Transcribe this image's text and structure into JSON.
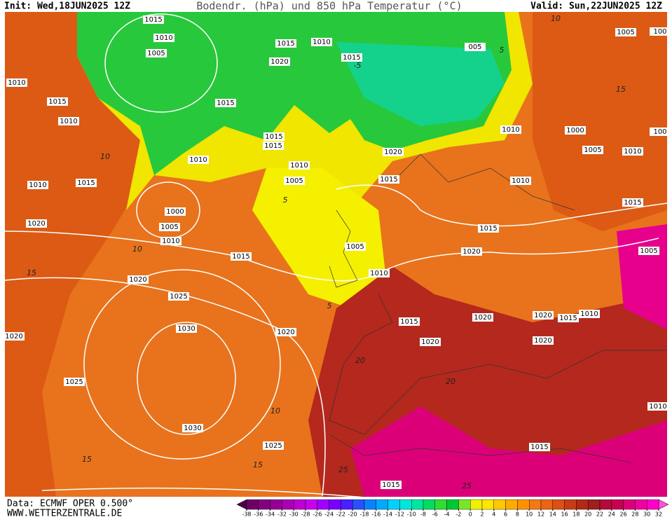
{
  "header": {
    "init": "Init: Wed,18JUN2025 12Z",
    "title": "Bodendr. (hPa) und 850 hPa Temperatur (°C)",
    "valid": "Valid: Sun,22JUN2025 12Z"
  },
  "footer": {
    "data": "Data: ECMWF OPER 0.500°",
    "site": "WWW.WETTERZENTRALE.DE"
  },
  "isobar_labels": [
    "1015",
    "1010",
    "1005",
    "1015",
    "1010",
    "1020",
    "1015",
    "005",
    "1005",
    "100",
    "1010",
    "1015",
    "1010",
    "1015",
    "1015",
    "1015",
    "1010",
    "1020",
    "1010",
    "1000",
    "1005",
    "1010",
    "100",
    "1010",
    "1005",
    "1015",
    "1010",
    "1010",
    "1015",
    "1000",
    "1005",
    "1010",
    "1015",
    "1020",
    "1015",
    "1005",
    "1015",
    "1020",
    "1005",
    "1010",
    "1020",
    "1025",
    "1015",
    "1020",
    "1020",
    "1015",
    "1010",
    "1030",
    "1020",
    "1020",
    "1020",
    "1020",
    "1025",
    "1030",
    "1025",
    "1010",
    "1015",
    "1015"
  ],
  "temperature_labels": [
    "10",
    "10",
    "15",
    "5",
    "10",
    "15",
    "15",
    "20",
    "20",
    "25",
    "25",
    "15",
    "10",
    "5",
    "5",
    "-5"
  ],
  "colorbar": {
    "ticks": [
      -38,
      -36,
      -34,
      -32,
      -30,
      -28,
      -26,
      -24,
      -22,
      -20,
      -18,
      -16,
      -14,
      -12,
      -10,
      -8,
      -6,
      -4,
      -2,
      0,
      2,
      4,
      6,
      8,
      10,
      12,
      14,
      16,
      18,
      20,
      22,
      24,
      26,
      28,
      30,
      32
    ],
    "colors": [
      "#4b0048",
      "#6e0064",
      "#82007d",
      "#960096",
      "#aa00b4",
      "#be00d2",
      "#c800f0",
      "#a000ff",
      "#7800ff",
      "#4b1eff",
      "#2850ff",
      "#0a82ff",
      "#00aaff",
      "#00d2ff",
      "#00e6dc",
      "#00e6a0",
      "#00dc64",
      "#32dc32",
      "#00c832",
      "#78e628",
      "#f0f000",
      "#ffe600",
      "#ffc800",
      "#ffaa00",
      "#ff9100",
      "#f57814",
      "#eb6414",
      "#dc5014",
      "#c83c14",
      "#b42814",
      "#a01e1e",
      "#b40a3c",
      "#c80050",
      "#dc0078",
      "#f000a0",
      "#ff00c8",
      "#ff50dc"
    ]
  }
}
